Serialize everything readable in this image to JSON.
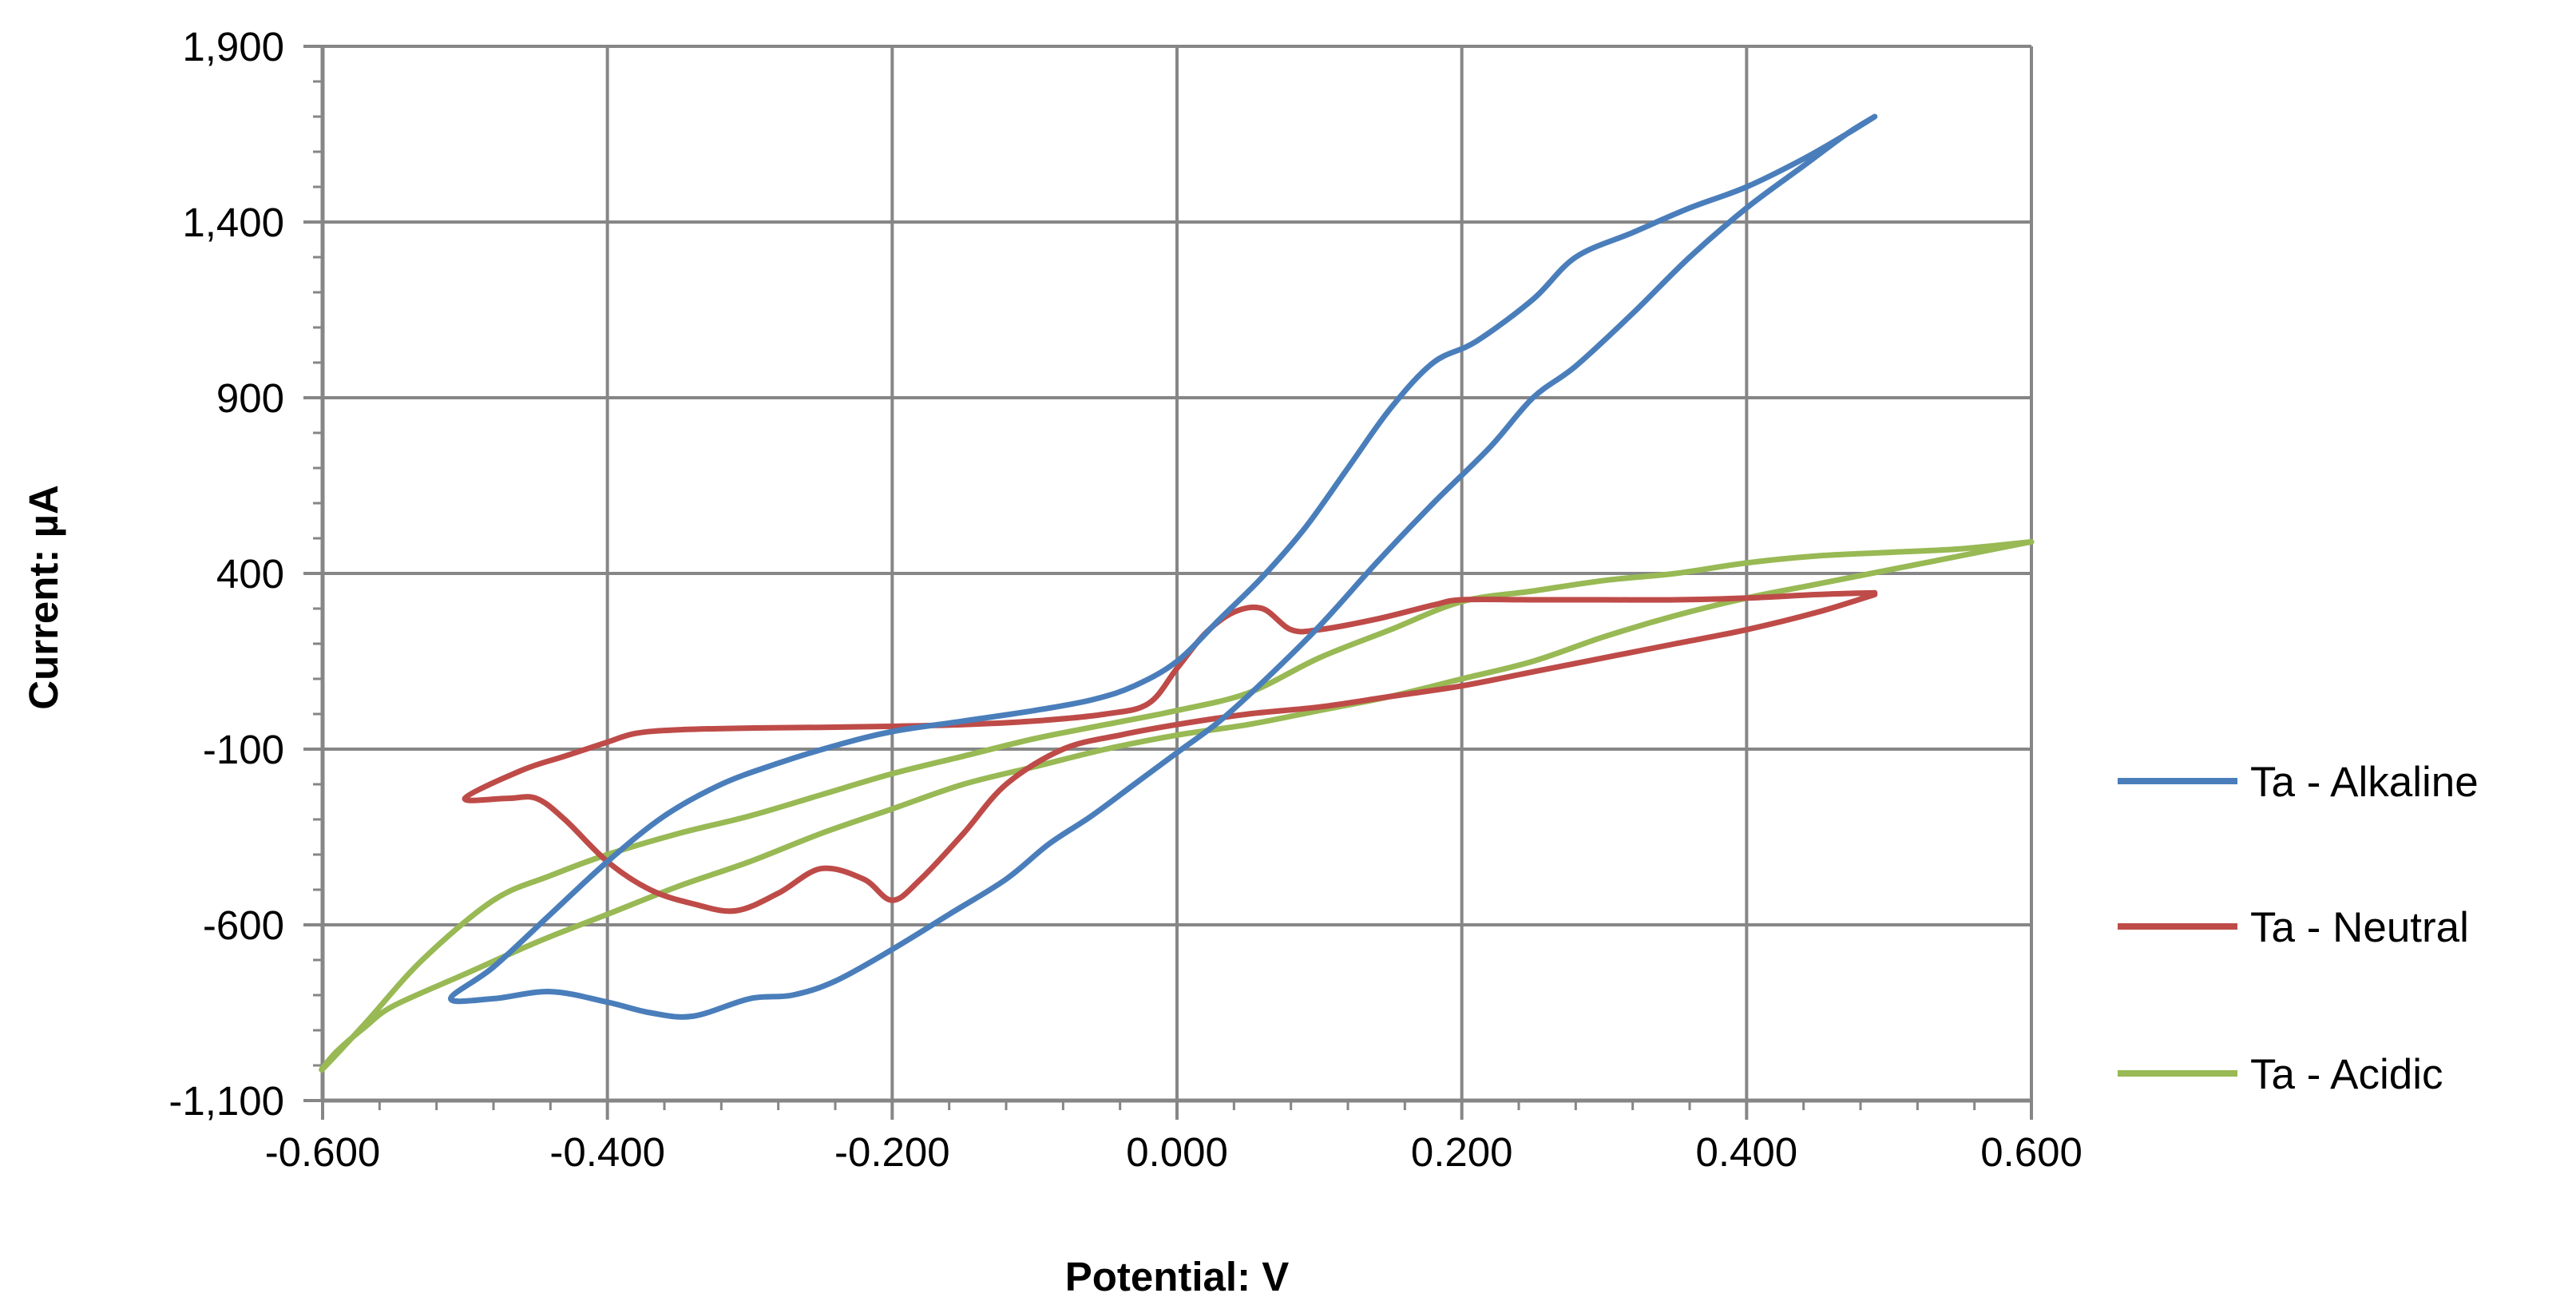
{
  "chart_data": {
    "type": "line",
    "title": "",
    "xlabel": "Potential: V",
    "ylabel": "Current: µA",
    "xlim": [
      -0.6,
      0.6
    ],
    "ylim": [
      -1100,
      1900
    ],
    "xticks": [
      -0.6,
      -0.4,
      -0.2,
      0.0,
      0.2,
      0.4,
      0.6
    ],
    "xtick_labels": [
      "-0.600",
      "-0.400",
      "-0.200",
      "0.000",
      "0.200",
      "0.400",
      "0.600"
    ],
    "yticks": [
      -1100,
      -600,
      -100,
      400,
      900,
      1400,
      1900
    ],
    "ytick_labels": [
      "-1,100",
      "-600",
      "-100",
      "400",
      "900",
      "1,400",
      "1,900"
    ],
    "grid": true,
    "legend_position": "right",
    "series": [
      {
        "name": "Ta - Alkaline",
        "color": "#4A7EBB",
        "x": [
          0.49,
          0.47,
          0.44,
          0.4,
          0.36,
          0.32,
          0.28,
          0.25,
          0.22,
          0.18,
          0.14,
          0.1,
          0.06,
          0.03,
          0.0,
          -0.03,
          -0.06,
          -0.09,
          -0.12,
          -0.16,
          -0.2,
          -0.24,
          -0.27,
          -0.3,
          -0.34,
          -0.37,
          -0.4,
          -0.44,
          -0.48,
          -0.51,
          -0.48,
          -0.44,
          -0.4,
          -0.36,
          -0.32,
          -0.28,
          -0.24,
          -0.2,
          -0.15,
          -0.1,
          -0.06,
          -0.03,
          0.0,
          0.03,
          0.06,
          0.09,
          0.12,
          0.15,
          0.18,
          0.21,
          0.25,
          0.28,
          0.32,
          0.36,
          0.4,
          0.44,
          0.47,
          0.49
        ],
        "y": [
          1700,
          1650,
          1560,
          1440,
          1300,
          1140,
          990,
          900,
          760,
          600,
          430,
          250,
          90,
          -20,
          -110,
          -200,
          -290,
          -370,
          -470,
          -570,
          -670,
          -760,
          -800,
          -810,
          -860,
          -850,
          -820,
          -790,
          -810,
          -810,
          -720,
          -570,
          -420,
          -290,
          -200,
          -140,
          -90,
          -50,
          -20,
          10,
          40,
          80,
          150,
          270,
          390,
          530,
          700,
          870,
          1000,
          1060,
          1180,
          1300,
          1370,
          1440,
          1500,
          1580,
          1650,
          1700
        ]
      },
      {
        "name": "Ta - Neutral",
        "color": "#BE4B48",
        "x": [
          0.49,
          0.45,
          0.4,
          0.35,
          0.3,
          0.25,
          0.2,
          0.15,
          0.1,
          0.05,
          0.0,
          -0.04,
          -0.08,
          -0.12,
          -0.15,
          -0.18,
          -0.2,
          -0.22,
          -0.25,
          -0.28,
          -0.31,
          -0.34,
          -0.37,
          -0.4,
          -0.43,
          -0.45,
          -0.47,
          -0.5,
          -0.46,
          -0.43,
          -0.4,
          -0.38,
          -0.35,
          -0.3,
          -0.25,
          -0.2,
          -0.15,
          -0.1,
          -0.05,
          -0.02,
          0.0,
          0.02,
          0.04,
          0.06,
          0.08,
          0.1,
          0.14,
          0.18,
          0.2,
          0.25,
          0.3,
          0.35,
          0.4,
          0.45,
          0.49
        ],
        "y": [
          340,
          290,
          240,
          200,
          160,
          120,
          80,
          50,
          20,
          0,
          -30,
          -60,
          -100,
          -200,
          -340,
          -470,
          -530,
          -470,
          -440,
          -510,
          -560,
          -540,
          -500,
          -420,
          -300,
          -240,
          -240,
          -240,
          -160,
          -120,
          -80,
          -55,
          -45,
          -40,
          -38,
          -35,
          -30,
          -20,
          0,
          30,
          130,
          230,
          290,
          300,
          240,
          240,
          270,
          310,
          325,
          325,
          325,
          325,
          330,
          340,
          345
        ]
      },
      {
        "name": "Ta - Acidic",
        "color": "#98B954",
        "x": [
          0.6,
          0.55,
          0.5,
          0.45,
          0.4,
          0.35,
          0.3,
          0.25,
          0.2,
          0.15,
          0.1,
          0.05,
          0.0,
          -0.05,
          -0.1,
          -0.15,
          -0.2,
          -0.25,
          -0.3,
          -0.35,
          -0.4,
          -0.45,
          -0.5,
          -0.55,
          -0.57,
          -0.59,
          -0.6,
          -0.57,
          -0.53,
          -0.48,
          -0.44,
          -0.4,
          -0.35,
          -0.3,
          -0.25,
          -0.2,
          -0.15,
          -0.1,
          -0.05,
          0.0,
          0.05,
          0.1,
          0.15,
          0.2,
          0.25,
          0.3,
          0.35,
          0.4,
          0.45,
          0.5,
          0.55,
          0.6
        ],
        "y": [
          490,
          450,
          410,
          370,
          330,
          280,
          220,
          150,
          100,
          50,
          10,
          -30,
          -60,
          -100,
          -150,
          -200,
          -270,
          -340,
          -420,
          -490,
          -570,
          -650,
          -740,
          -830,
          -890,
          -960,
          -1010,
          -880,
          -700,
          -530,
          -460,
          -400,
          -340,
          -290,
          -230,
          -170,
          -120,
          -70,
          -30,
          10,
          60,
          160,
          240,
          320,
          350,
          380,
          400,
          430,
          450,
          460,
          470,
          490
        ]
      }
    ]
  }
}
